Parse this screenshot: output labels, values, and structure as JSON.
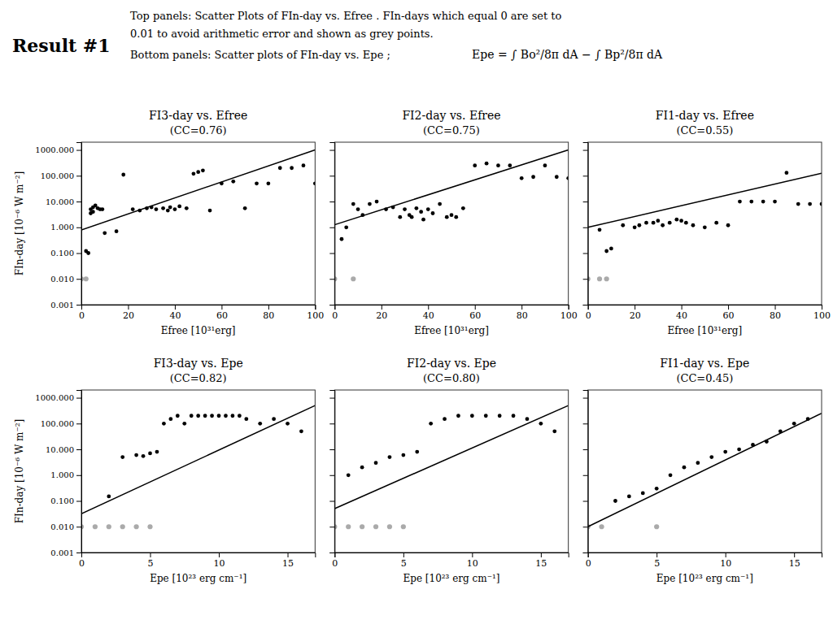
{
  "chart_data": [
    {
      "type": "scatter",
      "title": "FI3-day vs. Efree",
      "subtitle": "(CC=0.76)",
      "x_label": "Efree [10³¹erg]",
      "y_label": "FIn-day [10⁻⁶ W m⁻²]",
      "log": "y",
      "grid": false,
      "annotations": [
        "Result #1",
        "Top panels: Scatter Plots of FIn-day vs. Efree . FIn-days which equal 0 are set to",
        "0.01 to avoid arithmetic error and shown as grey points.",
        "Bottom panels: Scatter plots of FIn-day vs. Epe ;",
        "Epe = ∫ Bo²/8π dA − ∫ Bp²/8π dA"
      ],
      "xlim": [
        0,
        100
      ],
      "xticks": [
        0,
        20,
        40,
        60,
        80,
        100
      ],
      "ylim": [
        0.001,
        2000.0
      ],
      "yticks": [
        0.001,
        {
          "value": 0.01,
          "label": "0.010"
        },
        {
          "value": 0.1,
          "label": "0.100"
        },
        {
          "value": 1,
          "label": "1.000"
        },
        {
          "value": 10,
          "label": "10.000"
        },
        {
          "value": 100,
          "label": "100.000"
        },
        {
          "value": 1000,
          "label": "1000.000"
        }
      ],
      "series": [
        {
          "color": "#aaaaaa",
          "marker": "circle",
          "x": [
            0,
            2
          ],
          "values": [
            0.01,
            0.01
          ]
        },
        {
          "color": "black",
          "marker": "circle",
          "x": [
            2,
            3,
            4,
            4,
            5,
            5,
            6,
            7,
            8,
            9,
            10,
            15,
            18,
            22,
            25,
            28,
            30,
            32,
            35,
            37,
            38,
            40,
            42,
            45,
            48,
            50,
            52,
            55,
            60,
            65,
            70,
            75,
            80,
            85,
            90,
            95,
            100
          ],
          "values": [
            0.12,
            0.1,
            3.5,
            5.0,
            4.0,
            6.0,
            7.0,
            5.5,
            5.0,
            5.0,
            0.6,
            0.7,
            110.0,
            5.0,
            4.5,
            5.5,
            6.0,
            5.0,
            5.5,
            4.5,
            6.0,
            5.0,
            6.5,
            5.5,
            120.0,
            140.0,
            160.0,
            4.5,
            50.0,
            60.0,
            5.5,
            50.0,
            50.0,
            200.0,
            200.0,
            250.0,
            50.0
          ]
        },
        {
          "type": "line",
          "color": "black",
          "line_style": "solid",
          "x": [
            0,
            100
          ],
          "values": [
            0.7943282347242815,
            1000.0
          ]
        }
      ]
    },
    {
      "type": "scatter",
      "title": "FI2-day vs. Efree",
      "subtitle": "(CC=0.75)",
      "x_label": "Efree [10³¹erg]",
      "log": "y",
      "grid": false,
      "tick_labels": "x",
      "xlim": [
        0,
        100
      ],
      "xticks": [
        0,
        20,
        40,
        60,
        80,
        100
      ],
      "ylim": [
        0.001,
        2000.0
      ],
      "yticks": [
        0.001,
        {
          "value": 0.01,
          "label": "0.010"
        },
        {
          "value": 0.1,
          "label": "0.100"
        },
        {
          "value": 1,
          "label": "1.000"
        },
        {
          "value": 10,
          "label": "10.000"
        },
        {
          "value": 100,
          "label": "100.000"
        },
        {
          "value": 1000,
          "label": "1000.000"
        }
      ],
      "series": [
        {
          "color": "#aaaaaa",
          "marker": "circle",
          "x": [
            0,
            8
          ],
          "values": [
            0.01,
            0.01
          ]
        },
        {
          "color": "black",
          "marker": "circle",
          "x": [
            3,
            5,
            8,
            10,
            12,
            15,
            18,
            22,
            25,
            28,
            30,
            32,
            33,
            35,
            37,
            38,
            40,
            42,
            45,
            48,
            50,
            52,
            55,
            60,
            65,
            70,
            75,
            80,
            85,
            90,
            95,
            100
          ],
          "values": [
            0.35,
            1.0,
            8.0,
            5.0,
            3.0,
            8.0,
            10.0,
            5.0,
            6.0,
            2.5,
            5.0,
            3.0,
            2.5,
            5.5,
            4.0,
            2.0,
            5.0,
            3.5,
            8.0,
            2.5,
            3.0,
            2.5,
            5.5,
            250.0,
            300.0,
            250.0,
            250.0,
            80.0,
            90.0,
            250.0,
            90.0,
            80.0
          ]
        },
        {
          "type": "line",
          "color": "black",
          "line_style": "solid",
          "x": [
            0,
            100
          ],
          "values": [
            1.2589254117941673,
            1000.0
          ]
        }
      ]
    },
    {
      "type": "scatter",
      "title": "FI1-day vs. Efree",
      "subtitle": "(CC=0.55)",
      "x_label": "Efree [10³¹erg]",
      "log": "y",
      "grid": false,
      "tick_labels": "x",
      "xlim": [
        0,
        100
      ],
      "xticks": [
        0,
        20,
        40,
        60,
        80,
        100
      ],
      "ylim": [
        0.001,
        2000.0
      ],
      "yticks": [
        0.001,
        {
          "value": 0.01,
          "label": "0.010"
        },
        {
          "value": 0.1,
          "label": "0.100"
        },
        {
          "value": 1,
          "label": "1.000"
        },
        {
          "value": 10,
          "label": "10.000"
        },
        {
          "value": 100,
          "label": "100.000"
        },
        {
          "value": 1000,
          "label": "1000.000"
        }
      ],
      "series": [
        {
          "color": "#aaaaaa",
          "marker": "circle",
          "x": [
            0,
            5,
            8
          ],
          "values": [
            0.01,
            0.01,
            0.01
          ]
        },
        {
          "color": "black",
          "marker": "circle",
          "x": [
            5,
            8,
            10,
            15,
            20,
            22,
            25,
            28,
            30,
            32,
            35,
            38,
            40,
            42,
            45,
            50,
            55,
            60,
            65,
            70,
            75,
            80,
            85,
            90,
            95,
            100
          ],
          "values": [
            0.8,
            0.12,
            0.15,
            1.2,
            1.0,
            1.2,
            1.5,
            1.5,
            1.8,
            1.2,
            1.5,
            2.0,
            1.8,
            1.5,
            1.2,
            1.0,
            1.5,
            1.2,
            10.0,
            10.0,
            10.0,
            10.0,
            130.0,
            8.0,
            8.0,
            8.0
          ]
        },
        {
          "type": "line",
          "color": "black",
          "line_style": "solid",
          "x": [
            0,
            100
          ],
          "values": [
            1.0,
            125.89254117941675
          ]
        }
      ]
    },
    {
      "type": "scatter",
      "title": "FI3-day vs. Epe",
      "subtitle": "(CC=0.82)",
      "x_label": "Epe [10²³ erg cm⁻¹]",
      "y_label": "FIn-day [10⁻⁶ W m⁻²]",
      "log": "y",
      "grid": false,
      "xlim": [
        0,
        17
      ],
      "xticks": [
        0,
        5,
        10,
        15
      ],
      "ylim": [
        0.001,
        2000.0
      ],
      "yticks": [
        0.001,
        {
          "value": 0.01,
          "label": "0.010"
        },
        {
          "value": 0.1,
          "label": "0.100"
        },
        {
          "value": 1,
          "label": "1.000"
        },
        {
          "value": 10,
          "label": "10.000"
        },
        {
          "value": 100,
          "label": "100.000"
        },
        {
          "value": 1000,
          "label": "1000.000"
        }
      ],
      "series": [
        {
          "color": "#aaaaaa",
          "marker": "circle",
          "x": [
            0,
            1,
            2,
            3,
            4,
            5
          ],
          "values": [
            0.01,
            0.01,
            0.01,
            0.01,
            0.01,
            0.01
          ]
        },
        {
          "color": "black",
          "marker": "circle",
          "x": [
            2,
            3,
            4,
            4.5,
            5,
            5.5,
            6,
            6.5,
            7,
            7.5,
            8,
            8.5,
            9,
            9.5,
            10,
            10.5,
            11,
            11.5,
            12,
            13,
            14,
            15,
            16
          ],
          "values": [
            0.15,
            5.0,
            6.0,
            5.5,
            7.0,
            8.0,
            100.0,
            150.0,
            200.0,
            100.0,
            200.0,
            200.0,
            200.0,
            200.0,
            200.0,
            200.0,
            200.0,
            200.0,
            150.0,
            100.0,
            150.0,
            100.0,
            50.0
          ]
        },
        {
          "type": "line",
          "color": "black",
          "line_style": "solid",
          "x": [
            0,
            17
          ],
          "values": [
            0.03162277660168379,
            501.18723362727246
          ]
        }
      ]
    },
    {
      "type": "scatter",
      "title": "FI2-day vs. Epe",
      "subtitle": "(CC=0.80)",
      "x_label": "Epe [10²³ erg cm⁻¹]",
      "log": "y",
      "grid": false,
      "tick_labels": "x",
      "xlim": [
        0,
        17
      ],
      "xticks": [
        0,
        5,
        10,
        15
      ],
      "ylim": [
        0.001,
        2000.0
      ],
      "yticks": [
        0.001,
        {
          "value": 0.01,
          "label": "0.010"
        },
        {
          "value": 0.1,
          "label": "0.100"
        },
        {
          "value": 1,
          "label": "1.000"
        },
        {
          "value": 10,
          "label": "10.000"
        },
        {
          "value": 100,
          "label": "100.000"
        },
        {
          "value": 1000,
          "label": "1000.000"
        }
      ],
      "series": [
        {
          "color": "#aaaaaa",
          "marker": "circle",
          "x": [
            0,
            1,
            2,
            3,
            4,
            5
          ],
          "values": [
            0.01,
            0.01,
            0.01,
            0.01,
            0.01,
            0.01
          ]
        },
        {
          "color": "black",
          "marker": "circle",
          "x": [
            1,
            2,
            3,
            4,
            5,
            6,
            7,
            8,
            9,
            10,
            11,
            12,
            13,
            14,
            15,
            16
          ],
          "values": [
            1.0,
            2.0,
            3.0,
            5.0,
            6.0,
            8.0,
            100.0,
            150.0,
            200.0,
            200.0,
            200.0,
            200.0,
            200.0,
            150.0,
            100.0,
            50.0
          ]
        },
        {
          "type": "line",
          "color": "black",
          "line_style": "solid",
          "x": [
            0,
            17
          ],
          "values": [
            0.05011872336272722,
            501.18723362727246
          ]
        }
      ]
    },
    {
      "type": "scatter",
      "title": "FI1-day vs. Epe",
      "subtitle": "(CC=0.45)",
      "x_label": "Epe [10²³ erg cm⁻¹]",
      "log": "y",
      "grid": false,
      "tick_labels": "x",
      "xlim": [
        0,
        17
      ],
      "xticks": [
        0,
        5,
        10,
        15
      ],
      "ylim": [
        0.001,
        2000.0
      ],
      "yticks": [
        0.001,
        {
          "value": 0.01,
          "label": "0.010"
        },
        {
          "value": 0.1,
          "label": "0.100"
        },
        {
          "value": 1,
          "label": "1.000"
        },
        {
          "value": 10,
          "label": "10.000"
        },
        {
          "value": 100,
          "label": "100.000"
        },
        {
          "value": 1000,
          "label": "1000.000"
        }
      ],
      "series": [
        {
          "color": "#aaaaaa",
          "marker": "circle",
          "x": [
            0,
            1,
            5
          ],
          "values": [
            0.01,
            0.01,
            0.01
          ]
        },
        {
          "color": "black",
          "marker": "circle",
          "x": [
            2,
            3,
            4,
            5,
            6,
            7,
            8,
            9,
            10,
            11,
            12,
            13,
            14,
            15,
            16
          ],
          "values": [
            0.1,
            0.15,
            0.2,
            0.3,
            1.0,
            2.0,
            3.0,
            5.0,
            8.0,
            10.0,
            15.0,
            20.0,
            50.0,
            100.0,
            150.0
          ]
        },
        {
          "type": "line",
          "color": "black",
          "line_style": "solid",
          "x": [
            0,
            17
          ],
          "values": [
            0.01,
            251.18864315095797
          ]
        }
      ]
    }
  ]
}
